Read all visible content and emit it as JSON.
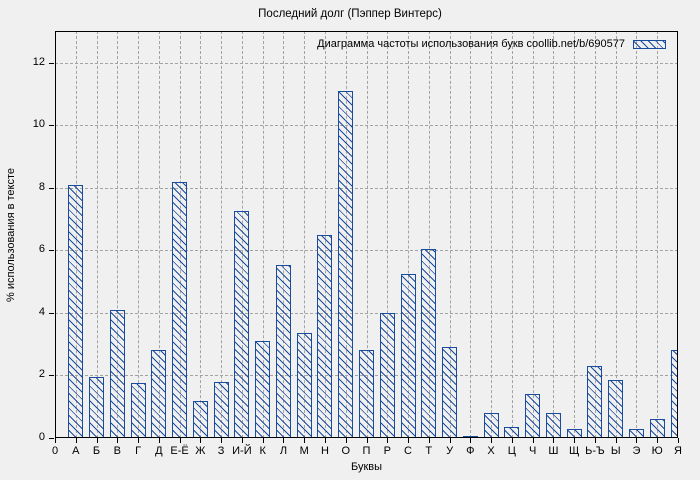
{
  "chart_data": {
    "type": "bar",
    "title": "Последний долг (Пэппер Винтерс)",
    "legend": "Диаграмма частоты использования букв coollib.net/b/690577",
    "legend_position": "top-right",
    "xlabel": "Буквы",
    "ylabel": "% использования в тексте",
    "origin_tick_label": "0",
    "categories": [
      "А",
      "Б",
      "В",
      "Г",
      "Д",
      "Е-Ё",
      "Ж",
      "З",
      "И-Й",
      "К",
      "Л",
      "М",
      "Н",
      "О",
      "П",
      "Р",
      "С",
      "Т",
      "У",
      "Ф",
      "Х",
      "Ц",
      "Ч",
      "Ш",
      "Щ",
      "Ь-Ъ",
      "Ы",
      "Э",
      "Ю",
      "Я"
    ],
    "values": [
      8.1,
      1.95,
      4.1,
      1.75,
      2.8,
      8.2,
      1.2,
      1.8,
      7.25,
      3.1,
      5.55,
      3.35,
      6.5,
      11.1,
      2.8,
      4.0,
      5.25,
      6.05,
      2.9,
      0.07,
      0.8,
      0.35,
      1.4,
      0.8,
      0.3,
      2.3,
      1.85,
      0.28,
      0.6,
      2.8
    ],
    "yticks": [
      0,
      2,
      4,
      6,
      8,
      10,
      12
    ],
    "ylim": [
      0,
      13.02
    ],
    "grid": true,
    "bar_style": "hatched-diagonal",
    "colors": {
      "bar": "#1a4c9e",
      "grid": "#a3a3a3",
      "frame": "#000000",
      "background": "#f0f0f0",
      "text": "#000000"
    }
  }
}
